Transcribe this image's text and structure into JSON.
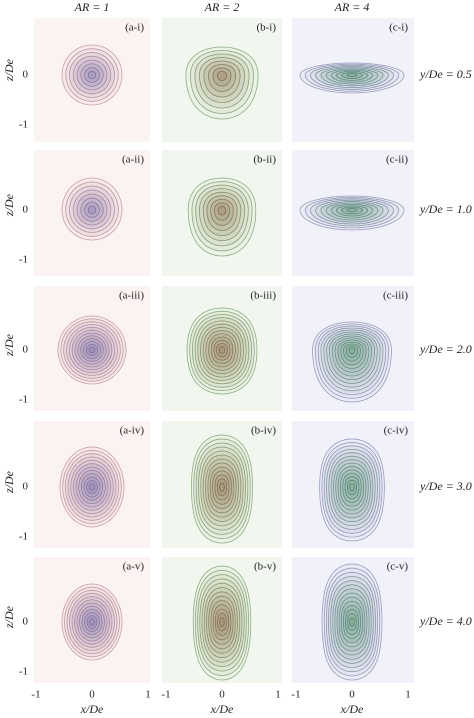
{
  "column_headers": [
    "AR = 1",
    "AR = 2",
    "AR = 4"
  ],
  "panel_labels": [
    [
      "(a-i)",
      "(b-i)",
      "(c-i)"
    ],
    [
      "(a-ii)",
      "(b-ii)",
      "(c-ii)"
    ],
    [
      "(a-iii)",
      "(b-iii)",
      "(c-iii)"
    ],
    [
      "(a-iv)",
      "(b-iv)",
      "(c-iv)"
    ],
    [
      "(a-v)",
      "(b-v)",
      "(c-v)"
    ]
  ],
  "row_labels": [
    "y/De = 0.5",
    "y/De = 1.0",
    "y/De = 2.0",
    "y/De = 3.0",
    "y/De = 4.0"
  ],
  "y_axis_label": "z/De",
  "x_axis_label": "x/De",
  "x_ticks": [
    "-1",
    "0",
    "1"
  ],
  "y_ticks": [
    "0",
    "-1"
  ]
}
